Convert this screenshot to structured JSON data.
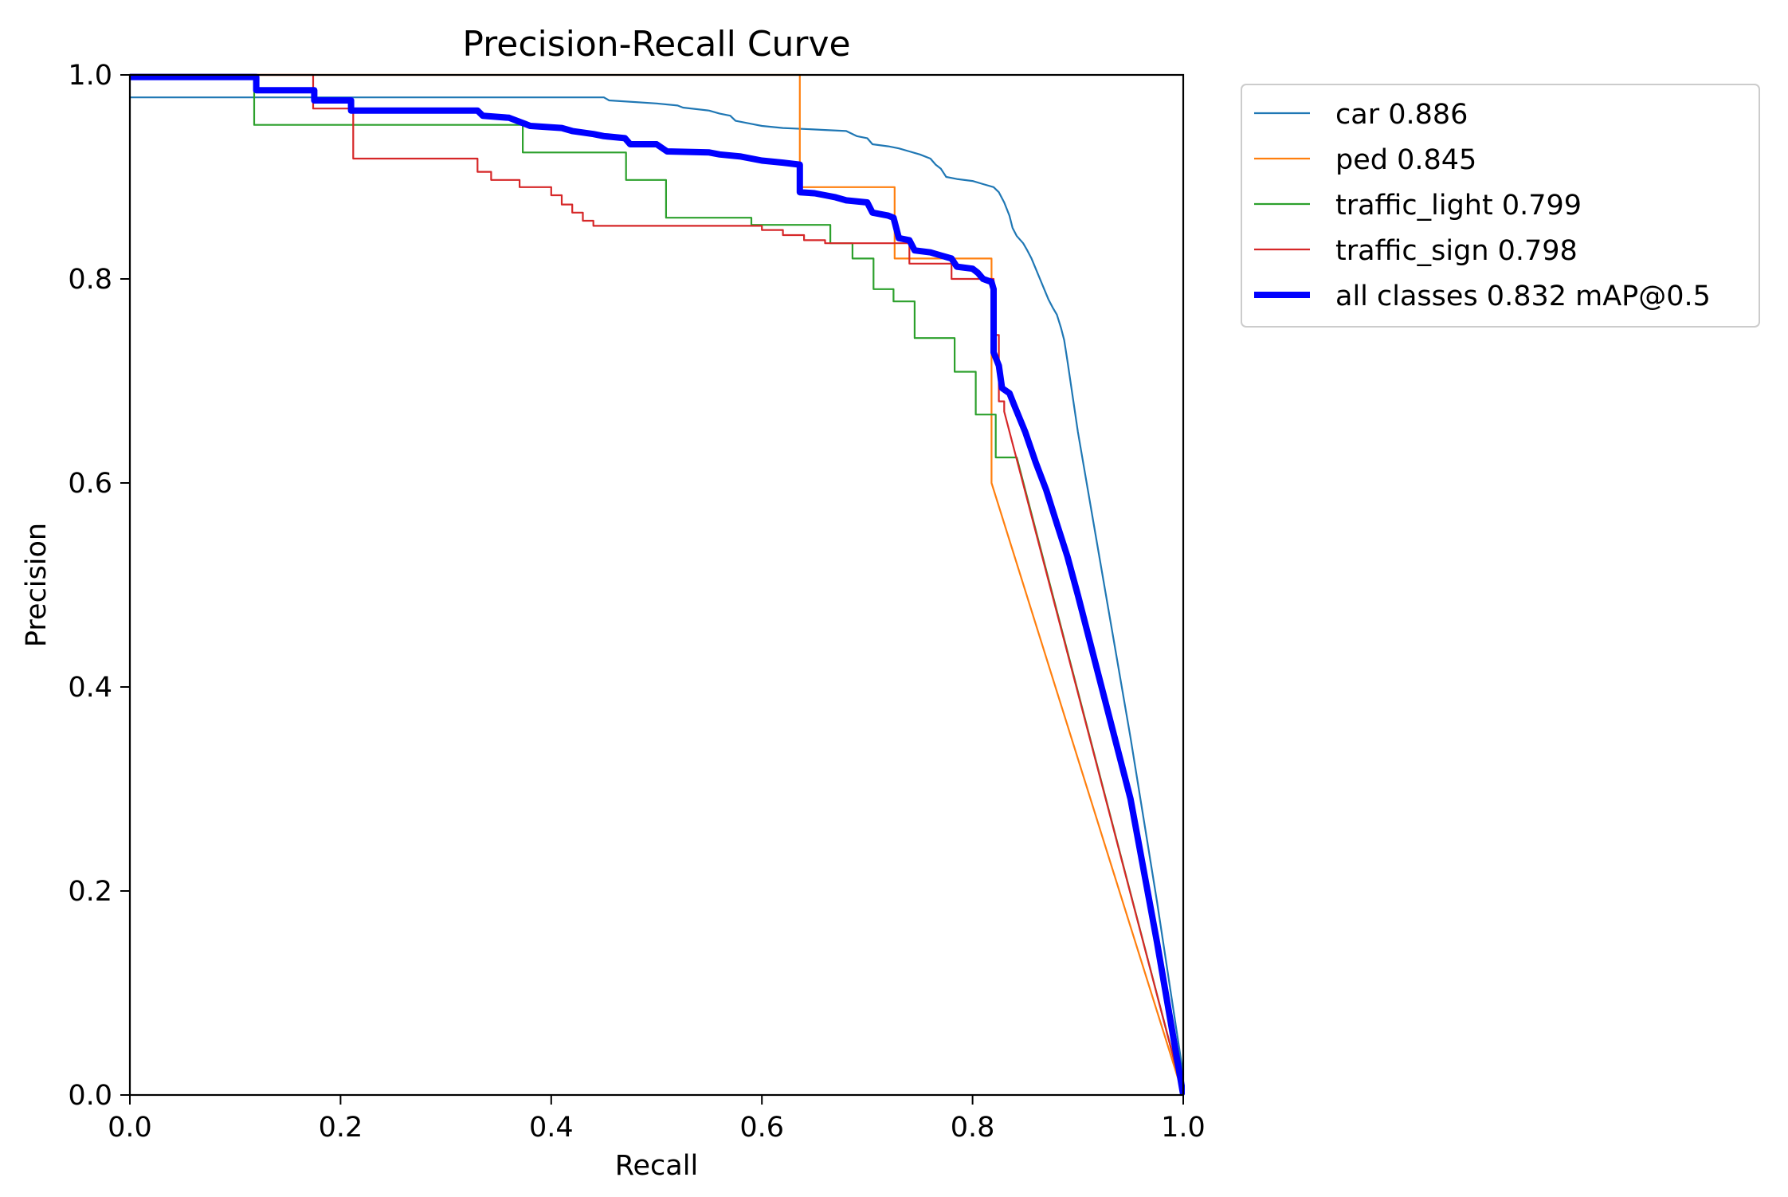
{
  "chart_data": {
    "type": "line",
    "title": "Precision-Recall Curve",
    "xlabel": "Recall",
    "ylabel": "Precision",
    "xlim": [
      0,
      1
    ],
    "ylim": [
      0,
      1
    ],
    "xticks": [
      0.0,
      0.2,
      0.4,
      0.6,
      0.8,
      1.0
    ],
    "yticks": [
      0.0,
      0.2,
      0.4,
      0.6,
      0.8,
      1.0
    ],
    "tick_labels_x": [
      "0.0",
      "0.2",
      "0.4",
      "0.6",
      "0.8",
      "1.0"
    ],
    "tick_labels_y": [
      "0.0",
      "0.2",
      "0.4",
      "0.6",
      "0.8",
      "1.0"
    ],
    "grid": false,
    "legend_position": "outside-top-right",
    "series": [
      {
        "name": "car 0.886",
        "color": "#1f77b4",
        "width": "thin",
        "points": [
          [
            0.0,
            0.978
          ],
          [
            0.1,
            0.978
          ],
          [
            0.2,
            0.978
          ],
          [
            0.3,
            0.978
          ],
          [
            0.4,
            0.978
          ],
          [
            0.45,
            0.978
          ],
          [
            0.455,
            0.975
          ],
          [
            0.5,
            0.972
          ],
          [
            0.52,
            0.97
          ],
          [
            0.525,
            0.968
          ],
          [
            0.55,
            0.965
          ],
          [
            0.56,
            0.962
          ],
          [
            0.57,
            0.96
          ],
          [
            0.575,
            0.955
          ],
          [
            0.59,
            0.952
          ],
          [
            0.6,
            0.95
          ],
          [
            0.62,
            0.948
          ],
          [
            0.64,
            0.947
          ],
          [
            0.66,
            0.946
          ],
          [
            0.68,
            0.945
          ],
          [
            0.69,
            0.94
          ],
          [
            0.7,
            0.938
          ],
          [
            0.705,
            0.932
          ],
          [
            0.72,
            0.93
          ],
          [
            0.73,
            0.928
          ],
          [
            0.74,
            0.925
          ],
          [
            0.75,
            0.922
          ],
          [
            0.76,
            0.918
          ],
          [
            0.765,
            0.912
          ],
          [
            0.77,
            0.908
          ],
          [
            0.775,
            0.9
          ],
          [
            0.785,
            0.898
          ],
          [
            0.8,
            0.896
          ],
          [
            0.81,
            0.893
          ],
          [
            0.82,
            0.89
          ],
          [
            0.825,
            0.885
          ],
          [
            0.83,
            0.875
          ],
          [
            0.835,
            0.862
          ],
          [
            0.838,
            0.85
          ],
          [
            0.842,
            0.842
          ],
          [
            0.848,
            0.835
          ],
          [
            0.852,
            0.828
          ],
          [
            0.856,
            0.82
          ],
          [
            0.86,
            0.81
          ],
          [
            0.864,
            0.8
          ],
          [
            0.868,
            0.79
          ],
          [
            0.872,
            0.78
          ],
          [
            0.876,
            0.772
          ],
          [
            0.88,
            0.765
          ],
          [
            0.884,
            0.752
          ],
          [
            0.887,
            0.74
          ],
          [
            0.89,
            0.72
          ],
          [
            0.9,
            0.65
          ],
          [
            0.92,
            0.53
          ],
          [
            0.95,
            0.35
          ],
          [
            0.975,
            0.19
          ],
          [
            1.0,
            0.02
          ]
        ]
      },
      {
        "name": "ped 0.845",
        "color": "#ff7f0e",
        "width": "thin",
        "points": [
          [
            0.0,
            1.0
          ],
          [
            0.636,
            1.0
          ],
          [
            0.636,
            0.89
          ],
          [
            0.726,
            0.89
          ],
          [
            0.726,
            0.82
          ],
          [
            0.818,
            0.82
          ],
          [
            0.818,
            0.6
          ],
          [
            1.0,
            0.0
          ]
        ]
      },
      {
        "name": "traffic_light 0.799",
        "color": "#2ca02c",
        "width": "thin",
        "points": [
          [
            0.0,
            1.0
          ],
          [
            0.118,
            1.0
          ],
          [
            0.118,
            0.951
          ],
          [
            0.373,
            0.951
          ],
          [
            0.373,
            0.924
          ],
          [
            0.471,
            0.924
          ],
          [
            0.471,
            0.897
          ],
          [
            0.509,
            0.897
          ],
          [
            0.509,
            0.86
          ],
          [
            0.59,
            0.86
          ],
          [
            0.59,
            0.853
          ],
          [
            0.665,
            0.853
          ],
          [
            0.665,
            0.835
          ],
          [
            0.686,
            0.835
          ],
          [
            0.686,
            0.82
          ],
          [
            0.706,
            0.82
          ],
          [
            0.706,
            0.79
          ],
          [
            0.725,
            0.79
          ],
          [
            0.725,
            0.778
          ],
          [
            0.745,
            0.778
          ],
          [
            0.745,
            0.742
          ],
          [
            0.783,
            0.742
          ],
          [
            0.783,
            0.709
          ],
          [
            0.803,
            0.709
          ],
          [
            0.803,
            0.667
          ],
          [
            0.822,
            0.667
          ],
          [
            0.822,
            0.625
          ],
          [
            0.842,
            0.625
          ],
          [
            1.0,
            0.0
          ]
        ]
      },
      {
        "name": "traffic_sign 0.798",
        "color": "#d62728",
        "width": "thin",
        "points": [
          [
            0.0,
            1.0
          ],
          [
            0.174,
            1.0
          ],
          [
            0.174,
            0.967
          ],
          [
            0.212,
            0.967
          ],
          [
            0.212,
            0.918
          ],
          [
            0.33,
            0.918
          ],
          [
            0.33,
            0.905
          ],
          [
            0.343,
            0.905
          ],
          [
            0.343,
            0.897
          ],
          [
            0.37,
            0.897
          ],
          [
            0.37,
            0.89
          ],
          [
            0.4,
            0.89
          ],
          [
            0.4,
            0.882
          ],
          [
            0.41,
            0.882
          ],
          [
            0.41,
            0.873
          ],
          [
            0.42,
            0.873
          ],
          [
            0.42,
            0.865
          ],
          [
            0.43,
            0.865
          ],
          [
            0.43,
            0.857
          ],
          [
            0.44,
            0.857
          ],
          [
            0.44,
            0.852
          ],
          [
            0.6,
            0.852
          ],
          [
            0.6,
            0.848
          ],
          [
            0.62,
            0.848
          ],
          [
            0.62,
            0.843
          ],
          [
            0.64,
            0.843
          ],
          [
            0.64,
            0.838
          ],
          [
            0.66,
            0.838
          ],
          [
            0.66,
            0.835
          ],
          [
            0.74,
            0.835
          ],
          [
            0.74,
            0.815
          ],
          [
            0.78,
            0.815
          ],
          [
            0.78,
            0.8
          ],
          [
            0.82,
            0.8
          ],
          [
            0.82,
            0.745
          ],
          [
            0.825,
            0.745
          ],
          [
            0.825,
            0.68
          ],
          [
            0.83,
            0.68
          ],
          [
            0.83,
            0.67
          ],
          [
            1.0,
            0.0
          ]
        ]
      },
      {
        "name": "all classes 0.832 mAP@0.5",
        "color": "#0000ff",
        "width": "thick",
        "points": [
          [
            0.0,
            0.998
          ],
          [
            0.12,
            0.998
          ],
          [
            0.12,
            0.985
          ],
          [
            0.175,
            0.985
          ],
          [
            0.175,
            0.975
          ],
          [
            0.21,
            0.975
          ],
          [
            0.21,
            0.965
          ],
          [
            0.33,
            0.965
          ],
          [
            0.335,
            0.96
          ],
          [
            0.36,
            0.958
          ],
          [
            0.375,
            0.952
          ],
          [
            0.38,
            0.95
          ],
          [
            0.41,
            0.948
          ],
          [
            0.42,
            0.945
          ],
          [
            0.44,
            0.942
          ],
          [
            0.45,
            0.94
          ],
          [
            0.47,
            0.938
          ],
          [
            0.475,
            0.932
          ],
          [
            0.5,
            0.932
          ],
          [
            0.51,
            0.925
          ],
          [
            0.55,
            0.924
          ],
          [
            0.56,
            0.922
          ],
          [
            0.58,
            0.92
          ],
          [
            0.6,
            0.916
          ],
          [
            0.62,
            0.914
          ],
          [
            0.636,
            0.912
          ],
          [
            0.636,
            0.885
          ],
          [
            0.65,
            0.884
          ],
          [
            0.66,
            0.882
          ],
          [
            0.67,
            0.88
          ],
          [
            0.68,
            0.877
          ],
          [
            0.7,
            0.875
          ],
          [
            0.705,
            0.865
          ],
          [
            0.72,
            0.862
          ],
          [
            0.725,
            0.86
          ],
          [
            0.73,
            0.84
          ],
          [
            0.74,
            0.838
          ],
          [
            0.745,
            0.828
          ],
          [
            0.76,
            0.826
          ],
          [
            0.77,
            0.823
          ],
          [
            0.78,
            0.82
          ],
          [
            0.785,
            0.812
          ],
          [
            0.8,
            0.81
          ],
          [
            0.805,
            0.806
          ],
          [
            0.81,
            0.8
          ],
          [
            0.818,
            0.797
          ],
          [
            0.82,
            0.79
          ],
          [
            0.82,
            0.728
          ],
          [
            0.825,
            0.715
          ],
          [
            0.828,
            0.693
          ],
          [
            0.835,
            0.688
          ],
          [
            0.84,
            0.675
          ],
          [
            0.85,
            0.65
          ],
          [
            0.86,
            0.62
          ],
          [
            0.87,
            0.593
          ],
          [
            0.88,
            0.56
          ],
          [
            0.89,
            0.528
          ],
          [
            0.9,
            0.49
          ],
          [
            0.92,
            0.41
          ],
          [
            0.95,
            0.29
          ],
          [
            0.975,
            0.15
          ],
          [
            1.0,
            0.0
          ]
        ]
      }
    ]
  }
}
